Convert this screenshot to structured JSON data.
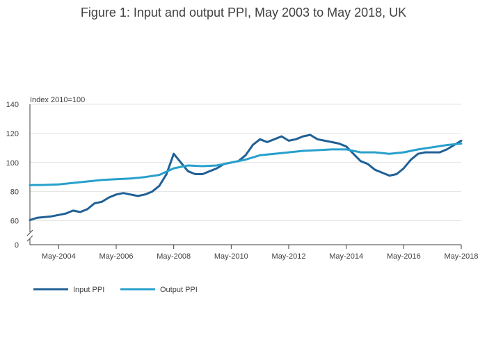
{
  "chart_data": {
    "type": "line",
    "title": "Figure 1: Input and output PPI, May 2003 to May 2018, UK",
    "ylabel": "Index 2010=100",
    "xlabel": "",
    "ylim": [
      0,
      140
    ],
    "axis_break": {
      "from": 0,
      "to": 55
    },
    "y_ticks": [
      0,
      60,
      80,
      100,
      120,
      140
    ],
    "x_ticks": [
      {
        "label": "May-2004",
        "value": 2004.33
      },
      {
        "label": "May-2006",
        "value": 2006.33
      },
      {
        "label": "May-2008",
        "value": 2008.33
      },
      {
        "label": "May-2010",
        "value": 2010.33
      },
      {
        "label": "May-2012",
        "value": 2012.33
      },
      {
        "label": "May-2014",
        "value": 2014.33
      },
      {
        "label": "May-2016",
        "value": 2016.33
      },
      {
        "label": "May-2018",
        "value": 2018.33
      }
    ],
    "xlim": [
      2003.33,
      2018.33
    ],
    "grid": true,
    "legend_position": "bottom-left",
    "series": [
      {
        "name": "Input PPI",
        "color": "#206095",
        "points": [
          [
            2003.33,
            60.5
          ],
          [
            2003.58,
            62
          ],
          [
            2003.83,
            62.5
          ],
          [
            2004.08,
            63
          ],
          [
            2004.33,
            64
          ],
          [
            2004.58,
            65
          ],
          [
            2004.83,
            67
          ],
          [
            2005.08,
            66
          ],
          [
            2005.33,
            68
          ],
          [
            2005.58,
            72
          ],
          [
            2005.83,
            73
          ],
          [
            2006.08,
            76
          ],
          [
            2006.33,
            78
          ],
          [
            2006.58,
            79
          ],
          [
            2006.83,
            78
          ],
          [
            2007.08,
            77
          ],
          [
            2007.33,
            78
          ],
          [
            2007.58,
            80
          ],
          [
            2007.83,
            84
          ],
          [
            2008.08,
            92
          ],
          [
            2008.33,
            106
          ],
          [
            2008.58,
            100
          ],
          [
            2008.83,
            94
          ],
          [
            2009.08,
            92
          ],
          [
            2009.33,
            92
          ],
          [
            2009.58,
            94
          ],
          [
            2009.83,
            96
          ],
          [
            2010.08,
            99
          ],
          [
            2010.33,
            100
          ],
          [
            2010.58,
            101
          ],
          [
            2010.83,
            105
          ],
          [
            2011.08,
            112
          ],
          [
            2011.33,
            116
          ],
          [
            2011.58,
            114
          ],
          [
            2011.83,
            116
          ],
          [
            2012.08,
            118
          ],
          [
            2012.33,
            115
          ],
          [
            2012.58,
            116
          ],
          [
            2012.83,
            118
          ],
          [
            2013.08,
            119
          ],
          [
            2013.33,
            116
          ],
          [
            2013.58,
            115
          ],
          [
            2013.83,
            114
          ],
          [
            2014.08,
            113
          ],
          [
            2014.33,
            111
          ],
          [
            2014.58,
            106
          ],
          [
            2014.83,
            101
          ],
          [
            2015.08,
            99
          ],
          [
            2015.33,
            95
          ],
          [
            2015.58,
            93
          ],
          [
            2015.83,
            91
          ],
          [
            2016.08,
            92
          ],
          [
            2016.33,
            96
          ],
          [
            2016.58,
            102
          ],
          [
            2016.83,
            106
          ],
          [
            2017.08,
            107
          ],
          [
            2017.33,
            107
          ],
          [
            2017.58,
            107
          ],
          [
            2017.83,
            109
          ],
          [
            2018.08,
            112
          ],
          [
            2018.33,
            115
          ]
        ]
      },
      {
        "name": "Output PPI",
        "color": "#27a0cc",
        "points": [
          [
            2003.33,
            84.5
          ],
          [
            2003.83,
            84.6
          ],
          [
            2004.33,
            85
          ],
          [
            2004.83,
            86
          ],
          [
            2005.33,
            87
          ],
          [
            2005.83,
            88
          ],
          [
            2006.33,
            88.5
          ],
          [
            2006.83,
            89
          ],
          [
            2007.33,
            90
          ],
          [
            2007.83,
            91.5
          ],
          [
            2008.33,
            96
          ],
          [
            2008.83,
            98
          ],
          [
            2009.33,
            97.5
          ],
          [
            2009.83,
            98
          ],
          [
            2010.33,
            100
          ],
          [
            2010.83,
            102
          ],
          [
            2011.33,
            105
          ],
          [
            2011.83,
            106
          ],
          [
            2012.33,
            107
          ],
          [
            2012.83,
            108
          ],
          [
            2013.33,
            108.5
          ],
          [
            2013.83,
            109
          ],
          [
            2014.33,
            109
          ],
          [
            2014.83,
            107
          ],
          [
            2015.33,
            107
          ],
          [
            2015.83,
            106
          ],
          [
            2016.33,
            107
          ],
          [
            2016.83,
            109
          ],
          [
            2017.33,
            110.5
          ],
          [
            2017.83,
            112
          ],
          [
            2018.33,
            113
          ]
        ]
      }
    ]
  }
}
